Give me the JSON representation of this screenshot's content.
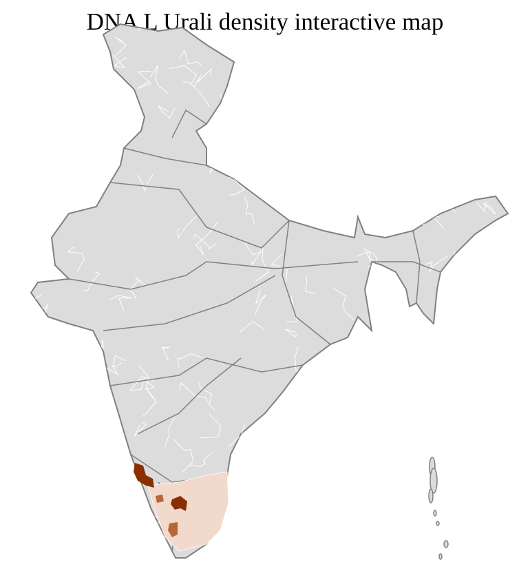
{
  "title": "DNA L Urali density interactive map",
  "colors": {
    "land": "#dcdcdc",
    "border": "#808080",
    "district_border": "#ffffff",
    "density_low": "#f1d9cc",
    "density_mid": "#b8653a",
    "density_high": "#8b2e00"
  },
  "density_regions": [
    {
      "level": "high"
    },
    {
      "level": "high"
    },
    {
      "level": "mid"
    },
    {
      "level": "mid"
    },
    {
      "level": "low"
    }
  ]
}
